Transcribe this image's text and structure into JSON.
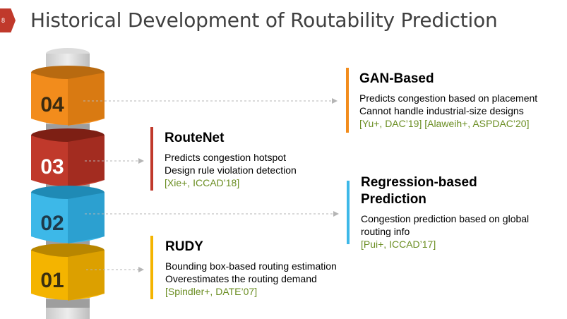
{
  "slide": {
    "number": "8"
  },
  "title": "Historical Development of Routability Prediction",
  "colors": {
    "orange": "#f28c1c",
    "red": "#c0392b",
    "blue": "#3db8e8",
    "yellow": "#f4b400",
    "ref_green": "#6b8e23"
  },
  "tower": {
    "labels": [
      "04",
      "03",
      "02",
      "01"
    ]
  },
  "items": {
    "gan": {
      "title": "GAN-Based",
      "lines": [
        "Predicts congestion based on placement",
        "Cannot handle industrial-size designs"
      ],
      "ref": "[Yu+, DAC’19] [Alaweih+, ASPDAC’20]"
    },
    "routenet": {
      "title": "RouteNet",
      "lines": [
        "Predicts congestion hotspot",
        "Design rule violation detection"
      ],
      "ref": "[Xie+, ICCAD’18]"
    },
    "regression": {
      "title_lines": [
        "Regression-based",
        "Prediction"
      ],
      "lines": [
        "Congestion prediction based on global",
        "routing info"
      ],
      "ref": "[Pui+, ICCAD’17]"
    },
    "rudy": {
      "title": "RUDY",
      "lines": [
        "Bounding box-based routing estimation",
        "Overestimates the routing demand"
      ],
      "ref": "[Spindler+, DATE’07]"
    }
  }
}
